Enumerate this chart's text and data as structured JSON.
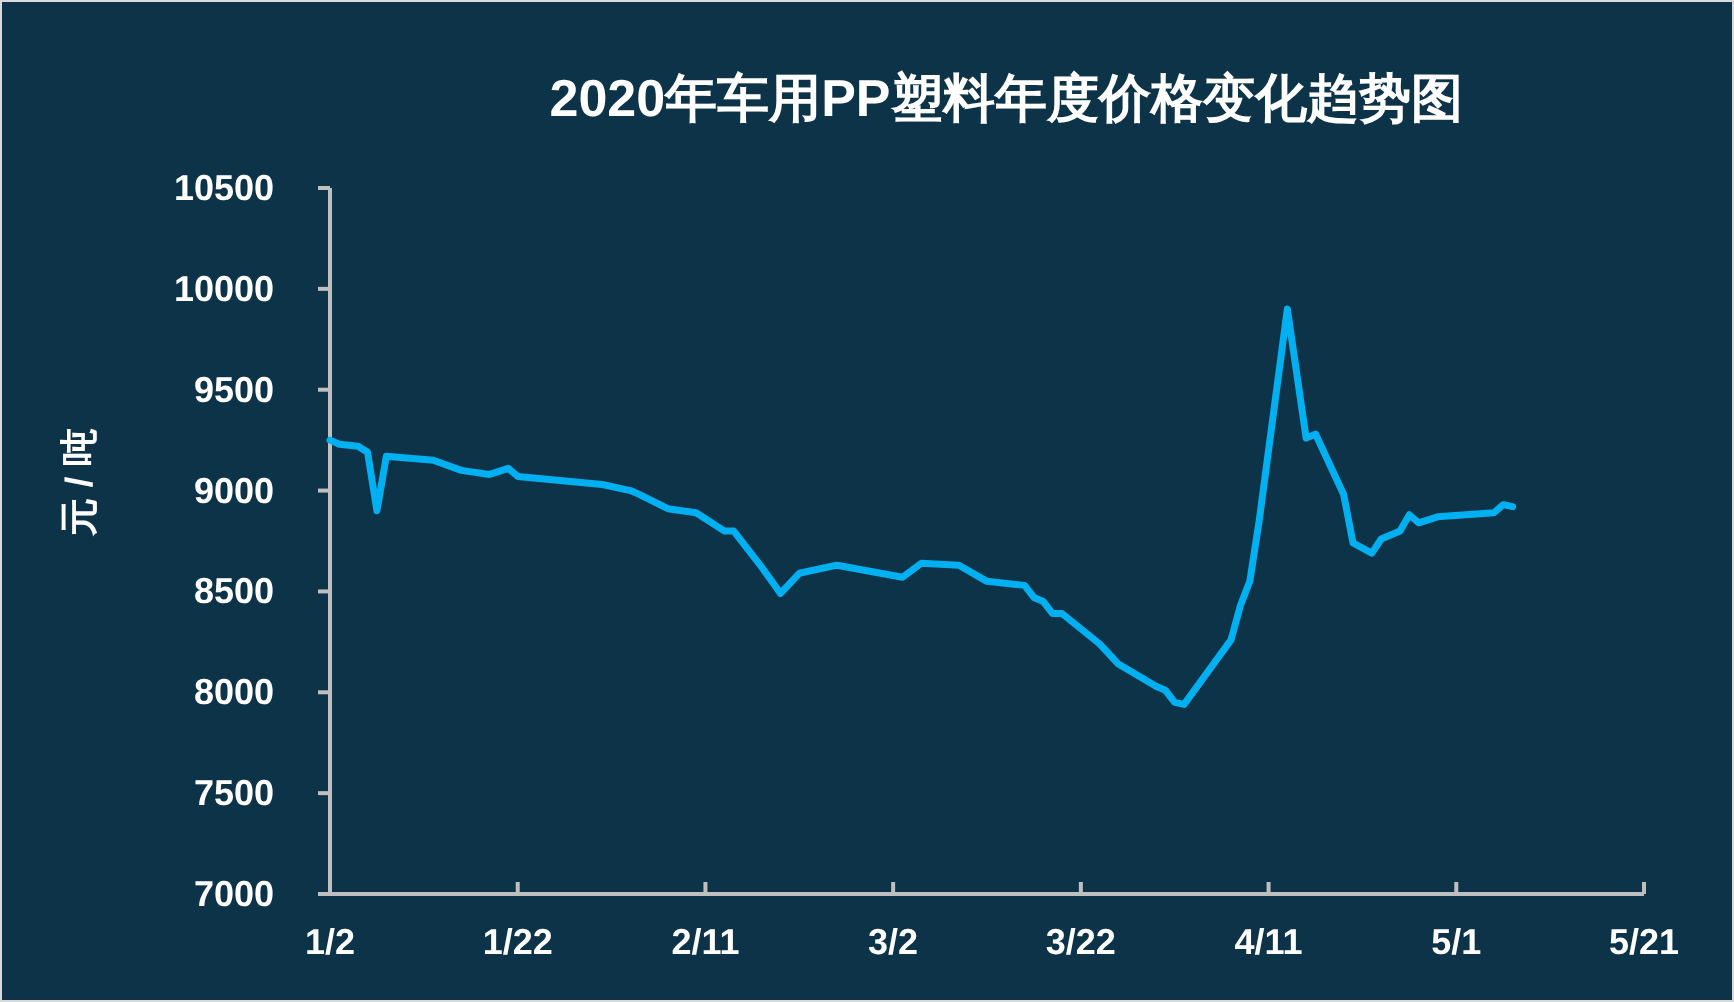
{
  "chart_data": {
    "type": "line",
    "title": "2020年车用PP塑料年度价格变化趋势图",
    "ylabel": "元 / 吨",
    "x": [
      "2020-01-02",
      "2020-01-03",
      "2020-01-05",
      "2020-01-06",
      "2020-01-07",
      "2020-01-08",
      "2020-01-13",
      "2020-01-16",
      "2020-01-19",
      "2020-01-21",
      "2020-01-22",
      "2020-01-31",
      "2020-02-03",
      "2020-02-04",
      "2020-02-07",
      "2020-02-10",
      "2020-02-13",
      "2020-02-14",
      "2020-02-17",
      "2020-02-19",
      "2020-02-21",
      "2020-02-25",
      "2020-03-03",
      "2020-03-05",
      "2020-03-09",
      "2020-03-12",
      "2020-03-16",
      "2020-03-17",
      "2020-03-18",
      "2020-03-19",
      "2020-03-20",
      "2020-03-24",
      "2020-03-26",
      "2020-03-30",
      "2020-03-31",
      "2020-04-01",
      "2020-04-02",
      "2020-04-07",
      "2020-04-08",
      "2020-04-09",
      "2020-04-10",
      "2020-04-13",
      "2020-04-15",
      "2020-04-16",
      "2020-04-19",
      "2020-04-20",
      "2020-04-22",
      "2020-04-23",
      "2020-04-25",
      "2020-04-26",
      "2020-04-27",
      "2020-04-29",
      "2020-05-05",
      "2020-05-06",
      "2020-05-07"
    ],
    "series": [
      {
        "color": "#00b0f0",
        "values": [
          9250,
          9230,
          9220,
          9190,
          8900,
          9170,
          9150,
          9100,
          9080,
          9110,
          9070,
          9030,
          9000,
          8980,
          8910,
          8890,
          8800,
          8800,
          8620,
          8490,
          8590,
          8630,
          8570,
          8640,
          8630,
          8550,
          8530,
          8470,
          8450,
          8390,
          8390,
          8240,
          8140,
          8030,
          8010,
          7950,
          7940,
          8260,
          8430,
          8550,
          8850,
          9900,
          9260,
          9280,
          8980,
          8740,
          8690,
          8760,
          8800,
          8880,
          8840,
          8870,
          8890,
          8930,
          8920
        ]
      }
    ],
    "xlim": [
      "2020-01-02",
      "2020-05-21"
    ],
    "xticks": [
      {
        "value": "2020-01-02",
        "label": "1/2"
      },
      {
        "value": "2020-01-22",
        "label": "1/22"
      },
      {
        "value": "2020-02-11",
        "label": "2/11"
      },
      {
        "value": "2020-03-02",
        "label": "3/2"
      },
      {
        "value": "2020-03-22",
        "label": "3/22"
      },
      {
        "value": "2020-04-11",
        "label": "4/11"
      },
      {
        "value": "2020-05-01",
        "label": "5/1"
      },
      {
        "value": "2020-05-21",
        "label": "5/21"
      }
    ],
    "ylim": [
      7000,
      10500
    ],
    "yticks": [
      7000,
      7500,
      8000,
      8500,
      9000,
      9500,
      10000,
      10500
    ],
    "grid": false,
    "marker": "none",
    "line_style": "solid"
  }
}
